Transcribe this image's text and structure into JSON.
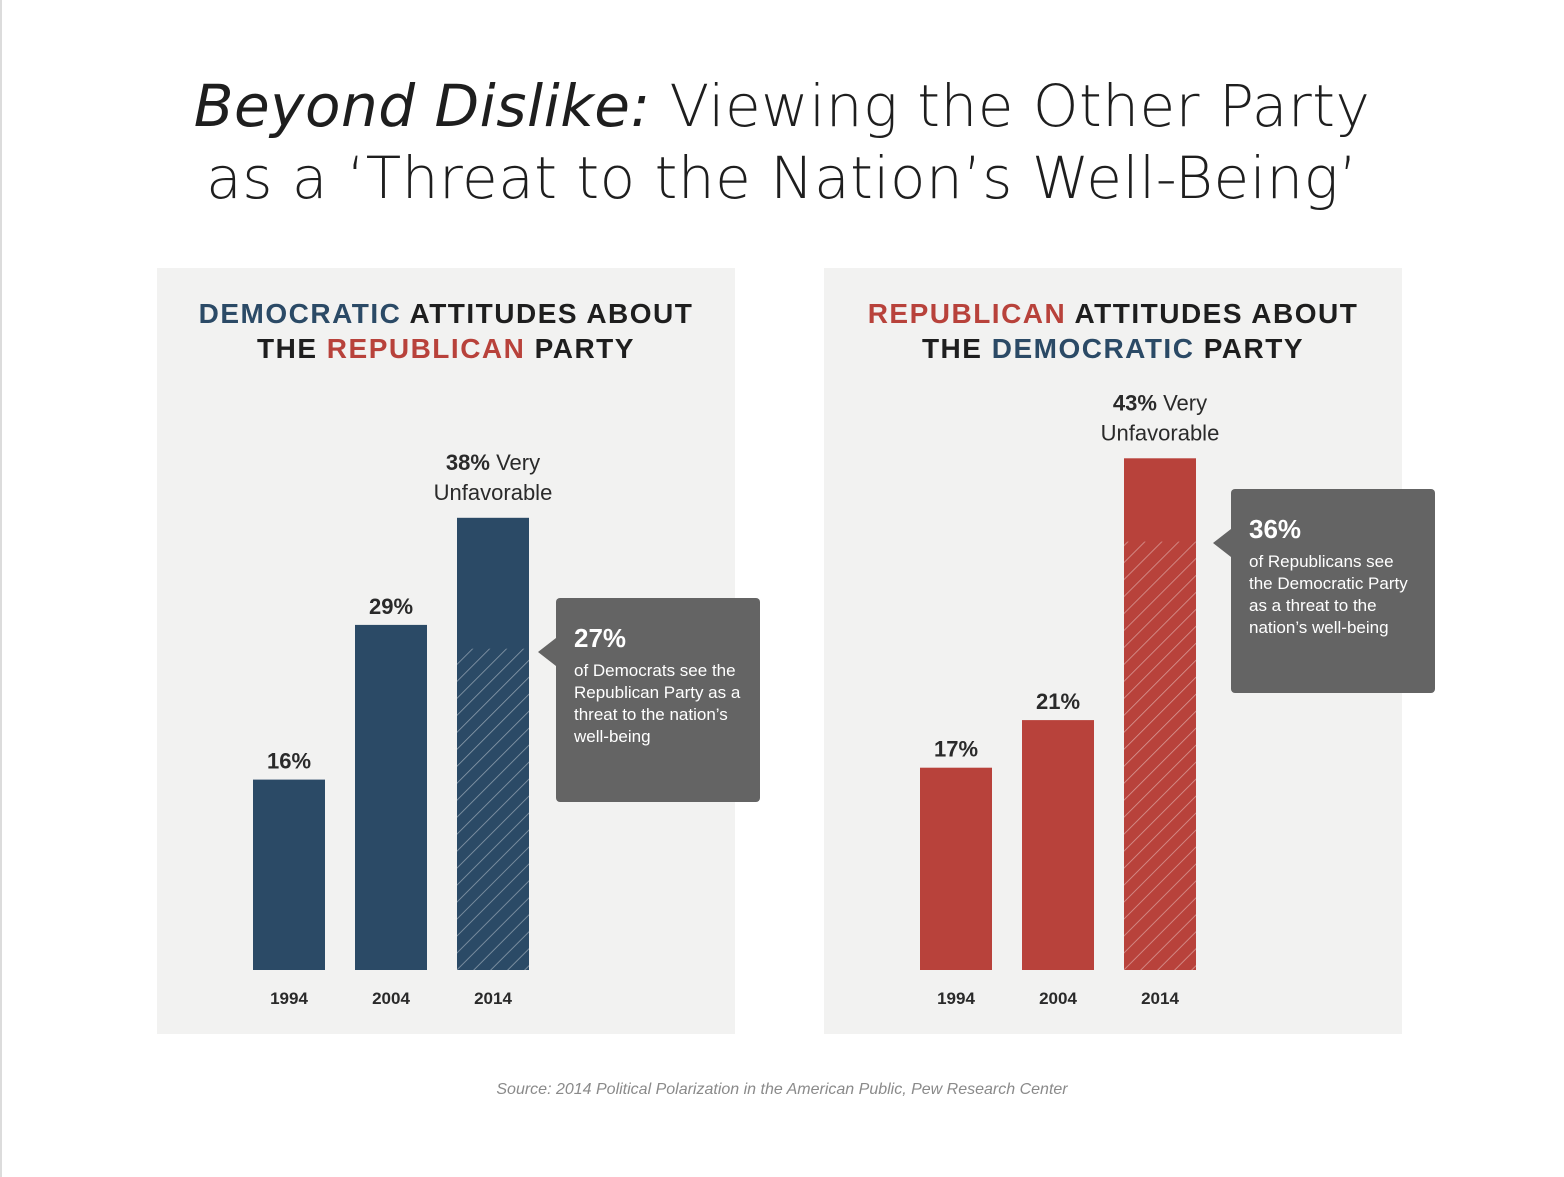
{
  "title": {
    "italic": "Beyond Dislike:",
    "line1_rest": " Viewing the Other Party",
    "line2": "as a ‘Threat to the Nation’s Well-Being’"
  },
  "source": "Source: 2014 Political Polarization in the American Public, Pew Research Center",
  "colors": {
    "democratic": "#2b4a66",
    "republican": "#b8423b",
    "callout": "#646464",
    "panel": "#f2f2f1"
  },
  "chart_data": [
    {
      "type": "bar",
      "title_parts": [
        "DEMOCRATIC",
        " ATTITUDES ABOUT",
        "THE ",
        "REPUBLICAN",
        " PARTY"
      ],
      "categories": [
        "1994",
        "2004",
        "2014"
      ],
      "values": [
        16,
        29,
        38
      ],
      "value_labels": [
        "16%",
        "29%",
        "38%"
      ],
      "top_label_rest": " Very",
      "top_label_line2": "Unfavorable",
      "unit": "%",
      "threat_value": 27,
      "threat_year": "2014",
      "callout_pct": "27%",
      "callout_text": "of Democrats see the Republican Party as a threat to the nation’s well-being",
      "bar_color": "#2b4a66"
    },
    {
      "type": "bar",
      "title_parts": [
        "REPUBLICAN",
        " ATTITUDES ABOUT",
        "THE ",
        "DEMOCRATIC",
        " PARTY"
      ],
      "categories": [
        "1994",
        "2004",
        "2014"
      ],
      "values": [
        17,
        21,
        43
      ],
      "value_labels": [
        "17%",
        "21%",
        "43%"
      ],
      "top_label_rest": " Very",
      "top_label_line2": "Unfavorable",
      "unit": "%",
      "threat_value": 36,
      "threat_year": "2014",
      "callout_pct": "36%",
      "callout_text": "of Republicans see the Democratic Party as a threat to the nation’s well-being",
      "bar_color": "#b8423b"
    }
  ]
}
